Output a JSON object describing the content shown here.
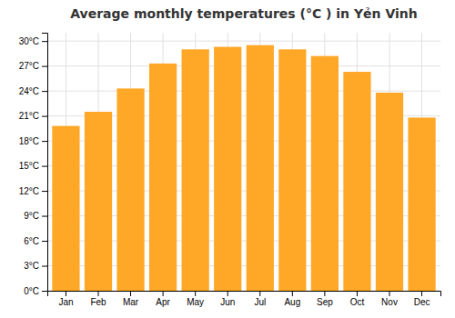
{
  "chart_data": {
    "type": "bar",
    "title": "Average monthly temperatures (°C ) in Yẻn Vinh",
    "categories": [
      "Jan",
      "Feb",
      "Mar",
      "Apr",
      "May",
      "Jun",
      "Jul",
      "Aug",
      "Sep",
      "Oct",
      "Nov",
      "Dec"
    ],
    "values": [
      19.8,
      21.5,
      24.3,
      27.3,
      29.0,
      29.3,
      29.5,
      29.0,
      28.2,
      26.3,
      23.8,
      20.8
    ],
    "color": "#FFA726",
    "ylim": [
      0,
      31
    ],
    "yticks": [
      {
        "value": 0,
        "label": "0°C"
      },
      {
        "value": 3,
        "label": "3°C"
      },
      {
        "value": 6,
        "label": "6°C"
      },
      {
        "value": 9,
        "label": "9°C"
      },
      {
        "value": 12,
        "label": "12°C"
      },
      {
        "value": 15,
        "label": "15°C"
      },
      {
        "value": 18,
        "label": "18°C"
      },
      {
        "value": 21,
        "label": "21°C"
      },
      {
        "value": 24,
        "label": "24°C"
      },
      {
        "value": 27,
        "label": "27°C"
      },
      {
        "value": 30,
        "label": "30°C"
      }
    ],
    "grid": true
  }
}
